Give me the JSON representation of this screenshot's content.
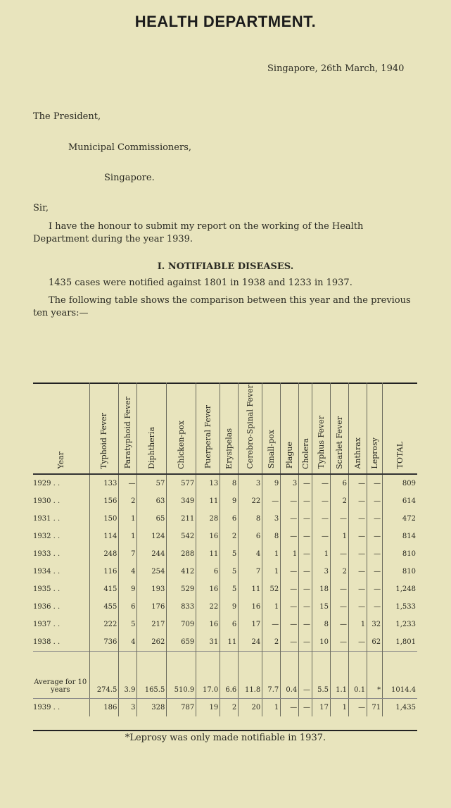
{
  "title": "HEALTH DEPARTMENT.",
  "date_line": "Singapore, 26th March, 1940",
  "address": [
    "The President,",
    "Municipal Commissioners,",
    "Singapore."
  ],
  "salutation": "Sir,",
  "intro": "I have the honour to submit my report on the working of the Health Department during the year 1939.",
  "section_heading": "I. NOTIFIABLE DISEASES.",
  "summary": "1435 cases were notified against 1801 in 1938 and 1233 in 1937.",
  "table_intro": "The following table shows the comparison between this year and the previous ten years:—",
  "table": {
    "headers": [
      "Year",
      "Typhoid Fever",
      "Paratyphoid Fever",
      "Diphtheria",
      "Chicken-pox",
      "Puerperal Fever",
      "Erysipelas",
      "Cerebro-Spinal Fever",
      "Small-pox",
      "Plague",
      "Cholera",
      "Typhus Fever",
      "Scarlet Fever",
      "Anthrax",
      "Leprosy",
      "TOTAL"
    ],
    "rows": [
      [
        "1929  . .",
        "133",
        "—",
        "57",
        "577",
        "13",
        "8",
        "3",
        "9",
        "3",
        "—",
        "—",
        "6",
        "—",
        "—",
        "809"
      ],
      [
        "1930  . .",
        "156",
        "2",
        "63",
        "349",
        "11",
        "9",
        "22",
        "—",
        "—",
        "—",
        "—",
        "2",
        "—",
        "—",
        "614"
      ],
      [
        "1931  . .",
        "150",
        "1",
        "65",
        "211",
        "28",
        "6",
        "8",
        "3",
        "—",
        "—",
        "—",
        "—",
        "—",
        "—",
        "472"
      ],
      [
        "1932  . .",
        "114",
        "1",
        "124",
        "542",
        "16",
        "2",
        "6",
        "8",
        "—",
        "—",
        "—",
        "1",
        "—",
        "—",
        "814"
      ],
      [
        "1933  . .",
        "248",
        "7",
        "244",
        "288",
        "11",
        "5",
        "4",
        "1",
        "1",
        "—",
        "1",
        "—",
        "—",
        "—",
        "810"
      ],
      [
        "1934  . .",
        "116",
        "4",
        "254",
        "412",
        "6",
        "5",
        "7",
        "1",
        "—",
        "—",
        "3",
        "2",
        "—",
        "—",
        "810"
      ],
      [
        "1935  . .",
        "415",
        "9",
        "193",
        "529",
        "16",
        "5",
        "11",
        "52",
        "—",
        "—",
        "18",
        "—",
        "—",
        "—",
        "1,248"
      ],
      [
        "1936  . .",
        "455",
        "6",
        "176",
        "833",
        "22",
        "9",
        "16",
        "1",
        "—",
        "—",
        "15",
        "—",
        "—",
        "—",
        "1,533"
      ],
      [
        "1937  . .",
        "222",
        "5",
        "217",
        "709",
        "16",
        "6",
        "17",
        "—",
        "—",
        "—",
        "8",
        "—",
        "1",
        "32",
        "1,233"
      ],
      [
        "1938  . .",
        "736",
        "4",
        "262",
        "659",
        "31",
        "11",
        "24",
        "2",
        "—",
        "—",
        "10",
        "—",
        "—",
        "62",
        "1,801"
      ]
    ],
    "average": [
      "Average for 10 years",
      "274.5",
      "3.9",
      "165.5",
      "510.9",
      "17.0",
      "6.6",
      "11.8",
      "7.7",
      "0.4",
      "—",
      "5.5",
      "1.1",
      "0.1",
      "*",
      "1014.4"
    ],
    "current": [
      "1939  . .",
      "186",
      "3",
      "328",
      "787",
      "19",
      "2",
      "20",
      "1",
      "—",
      "—",
      "17",
      "1",
      "—",
      "71",
      "1,435"
    ]
  },
  "footnote": "*Leprosy was only made notifiable in 1937."
}
